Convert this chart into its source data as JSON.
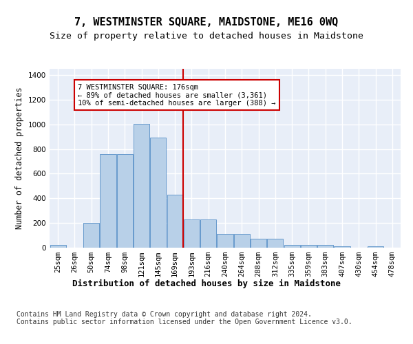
{
  "title": "7, WESTMINSTER SQUARE, MAIDSTONE, ME16 0WQ",
  "subtitle": "Size of property relative to detached houses in Maidstone",
  "xlabel": "Distribution of detached houses by size in Maidstone",
  "ylabel": "Number of detached properties",
  "categories": [
    "25sqm",
    "26sqm",
    "50sqm",
    "74sqm",
    "98sqm",
    "121sqm",
    "145sqm",
    "169sqm",
    "193sqm",
    "216sqm",
    "240sqm",
    "264sqm",
    "288sqm",
    "312sqm",
    "335sqm",
    "359sqm",
    "383sqm",
    "407sqm",
    "430sqm",
    "454sqm",
    "478sqm"
  ],
  "values": [
    22,
    0,
    200,
    760,
    760,
    1005,
    890,
    430,
    230,
    230,
    110,
    110,
    70,
    70,
    25,
    25,
    20,
    10,
    0,
    10,
    0
  ],
  "bar_color": "#b8d0e8",
  "bar_edge_color": "#6699cc",
  "vline_color": "#cc0000",
  "annotation_text": "7 WESTMINSTER SQUARE: 176sqm\n← 89% of detached houses are smaller (3,361)\n10% of semi-detached houses are larger (388) →",
  "annotation_box_color": "#cc0000",
  "annotation_box_facecolor": "#ffffff",
  "ylim": [
    0,
    1450
  ],
  "yticks": [
    0,
    200,
    400,
    600,
    800,
    1000,
    1200,
    1400
  ],
  "footer": "Contains HM Land Registry data © Crown copyright and database right 2024.\nContains public sector information licensed under the Open Government Licence v3.0.",
  "plot_background": "#e8eef8",
  "grid_color": "#ffffff",
  "title_fontsize": 11,
  "subtitle_fontsize": 9.5,
  "xlabel_fontsize": 9,
  "ylabel_fontsize": 8.5,
  "tick_fontsize": 7.5,
  "footer_fontsize": 7
}
